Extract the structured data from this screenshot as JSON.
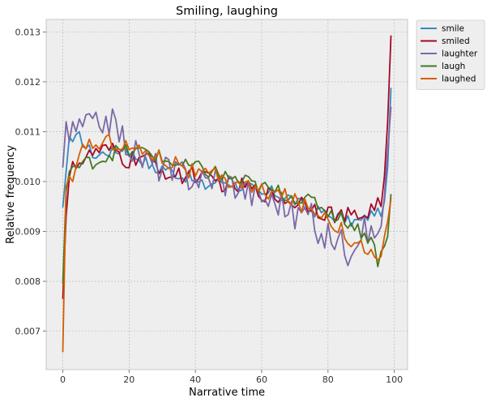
{
  "chart_data": {
    "type": "line",
    "title": "Smiling, laughing",
    "xlabel": "Narrative time",
    "ylabel": "Relative frequency",
    "xlim": [
      -5,
      104
    ],
    "ylim": [
      0.00623,
      0.01325
    ],
    "xticks": [
      0,
      20,
      40,
      60,
      80,
      100
    ],
    "yticks": [
      0.007,
      0.008,
      0.009,
      0.01,
      0.011,
      0.012,
      0.013
    ],
    "ytick_labels": [
      "0.007",
      "0.008",
      "0.009",
      "0.010",
      "0.011",
      "0.012",
      "0.013"
    ],
    "grid": true,
    "legend_position": "outside-top-right",
    "series": [
      {
        "name": "smile",
        "color": "#348ABD",
        "anchors": [
          [
            0,
            0.00948
          ],
          [
            1,
            0.0102
          ],
          [
            2,
            0.0109
          ],
          [
            3,
            0.0108
          ],
          [
            5,
            0.0109
          ],
          [
            7,
            0.0107
          ],
          [
            10,
            0.0105
          ],
          [
            13,
            0.0106
          ],
          [
            16,
            0.0106
          ],
          [
            19,
            0.0107
          ],
          [
            20,
            0.0106
          ],
          [
            22,
            0.0105
          ],
          [
            25,
            0.0104
          ],
          [
            28,
            0.0102
          ],
          [
            30,
            0.0103
          ],
          [
            33,
            0.0102
          ],
          [
            36,
            0.0101
          ],
          [
            38,
            0.0101
          ],
          [
            40,
            0.01
          ],
          [
            43,
            0.0099
          ],
          [
            46,
            0.01
          ],
          [
            48,
            0.01
          ],
          [
            50,
            0.01
          ],
          [
            53,
            0.0099
          ],
          [
            56,
            0.0099
          ],
          [
            58,
            0.0098
          ],
          [
            60,
            0.0097
          ],
          [
            63,
            0.0098
          ],
          [
            66,
            0.0097
          ],
          [
            68,
            0.0097
          ],
          [
            70,
            0.0096
          ],
          [
            73,
            0.0095
          ],
          [
            76,
            0.0094
          ],
          [
            78,
            0.0094
          ],
          [
            80,
            0.0093
          ],
          [
            83,
            0.0093
          ],
          [
            86,
            0.0092
          ],
          [
            88,
            0.0092
          ],
          [
            90,
            0.0092
          ],
          [
            92,
            0.0093
          ],
          [
            94,
            0.0094
          ],
          [
            96,
            0.0093
          ],
          [
            97,
            0.0096
          ],
          [
            98,
            0.0103
          ],
          [
            99,
            0.01188
          ]
        ],
        "amp": 0.00012
      },
      {
        "name": "smiled",
        "color": "#A60628",
        "anchors": [
          [
            0,
            0.00765
          ],
          [
            1,
            0.0093
          ],
          [
            2,
            0.0101
          ],
          [
            3,
            0.0104
          ],
          [
            5,
            0.0104
          ],
          [
            8,
            0.0105
          ],
          [
            10,
            0.0106
          ],
          [
            13,
            0.0106
          ],
          [
            16,
            0.0106
          ],
          [
            19,
            0.0104
          ],
          [
            20,
            0.0104
          ],
          [
            23,
            0.0105
          ],
          [
            26,
            0.0104
          ],
          [
            29,
            0.0103
          ],
          [
            31,
            0.0102
          ],
          [
            33,
            0.0101
          ],
          [
            36,
            0.0101
          ],
          [
            39,
            0.0102
          ],
          [
            41,
            0.0101
          ],
          [
            44,
            0.01
          ],
          [
            47,
            0.01
          ],
          [
            50,
            0.0099
          ],
          [
            53,
            0.0099
          ],
          [
            56,
            0.0099
          ],
          [
            58,
            0.0098
          ],
          [
            60,
            0.0098
          ],
          [
            63,
            0.0097
          ],
          [
            66,
            0.0097
          ],
          [
            68,
            0.0096
          ],
          [
            70,
            0.0096
          ],
          [
            73,
            0.0096
          ],
          [
            76,
            0.0095
          ],
          [
            78,
            0.0094
          ],
          [
            80,
            0.0094
          ],
          [
            83,
            0.0093
          ],
          [
            86,
            0.0093
          ],
          [
            88,
            0.0093
          ],
          [
            90,
            0.0093
          ],
          [
            92,
            0.0094
          ],
          [
            94,
            0.0095
          ],
          [
            95,
            0.0096
          ],
          [
            96,
            0.0095
          ],
          [
            97,
            0.0101
          ],
          [
            98,
            0.0112
          ],
          [
            99,
            0.01293
          ]
        ],
        "amp": 0.00018
      },
      {
        "name": "laughter",
        "color": "#7A68A6",
        "anchors": [
          [
            0,
            0.01028
          ],
          [
            1,
            0.0112
          ],
          [
            2,
            0.0108
          ],
          [
            3,
            0.0112
          ],
          [
            5,
            0.011
          ],
          [
            7,
            0.0112
          ],
          [
            10,
            0.0111
          ],
          [
            13,
            0.0113
          ],
          [
            16,
            0.0111
          ],
          [
            19,
            0.0108
          ],
          [
            20,
            0.0107
          ],
          [
            23,
            0.0105
          ],
          [
            26,
            0.0104
          ],
          [
            29,
            0.0103
          ],
          [
            31,
            0.0103
          ],
          [
            33,
            0.0101
          ],
          [
            36,
            0.0102
          ],
          [
            38,
            0.0101
          ],
          [
            40,
            0.0101
          ],
          [
            43,
            0.01
          ],
          [
            46,
            0.0101
          ],
          [
            48,
            0.01
          ],
          [
            50,
            0.01
          ],
          [
            53,
            0.0099
          ],
          [
            56,
            0.0098
          ],
          [
            58,
            0.0097
          ],
          [
            60,
            0.0097
          ],
          [
            63,
            0.0096
          ],
          [
            66,
            0.0096
          ],
          [
            68,
            0.0094
          ],
          [
            70,
            0.0093
          ],
          [
            73,
            0.0094
          ],
          [
            76,
            0.0092
          ],
          [
            78,
            0.0088
          ],
          [
            80,
            0.0089
          ],
          [
            83,
            0.0089
          ],
          [
            86,
            0.0086
          ],
          [
            88,
            0.0089
          ],
          [
            90,
            0.009
          ],
          [
            92,
            0.009
          ],
          [
            94,
            0.0089
          ],
          [
            96,
            0.0091
          ],
          [
            97,
            0.0097
          ],
          [
            98,
            0.0106
          ],
          [
            99,
            0.0115
          ]
        ],
        "amp": 0.0003
      },
      {
        "name": "laugh",
        "color": "#467821",
        "anchors": [
          [
            0,
            0.00795
          ],
          [
            1,
            0.0098
          ],
          [
            2,
            0.0102
          ],
          [
            3,
            0.0103
          ],
          [
            5,
            0.0103
          ],
          [
            8,
            0.0104
          ],
          [
            10,
            0.0104
          ],
          [
            13,
            0.0105
          ],
          [
            16,
            0.0106
          ],
          [
            19,
            0.0106
          ],
          [
            20,
            0.0106
          ],
          [
            23,
            0.0106
          ],
          [
            26,
            0.0106
          ],
          [
            29,
            0.0105
          ],
          [
            31,
            0.0104
          ],
          [
            33,
            0.0104
          ],
          [
            36,
            0.0103
          ],
          [
            38,
            0.0103
          ],
          [
            40,
            0.0103
          ],
          [
            43,
            0.0102
          ],
          [
            46,
            0.0102
          ],
          [
            48,
            0.0101
          ],
          [
            50,
            0.0101
          ],
          [
            53,
            0.01
          ],
          [
            56,
            0.01
          ],
          [
            58,
            0.0099
          ],
          [
            60,
            0.0099
          ],
          [
            63,
            0.0098
          ],
          [
            66,
            0.0098
          ],
          [
            68,
            0.0097
          ],
          [
            70,
            0.0097
          ],
          [
            73,
            0.0096
          ],
          [
            76,
            0.0096
          ],
          [
            78,
            0.0095
          ],
          [
            80,
            0.0094
          ],
          [
            83,
            0.0093
          ],
          [
            86,
            0.0092
          ],
          [
            88,
            0.0091
          ],
          [
            90,
            0.009
          ],
          [
            92,
            0.0089
          ],
          [
            94,
            0.0087
          ],
          [
            95,
            0.0084
          ],
          [
            96,
            0.0086
          ],
          [
            97,
            0.0087
          ],
          [
            98,
            0.0089
          ],
          [
            99,
            0.00975
          ]
        ],
        "amp": 0.00015
      },
      {
        "name": "laughed",
        "color": "#D55E00",
        "anchors": [
          [
            0,
            0.00658
          ],
          [
            1,
            0.0099
          ],
          [
            2,
            0.0101
          ],
          [
            3,
            0.01
          ],
          [
            5,
            0.0104
          ],
          [
            7,
            0.0108
          ],
          [
            10,
            0.0107
          ],
          [
            13,
            0.0108
          ],
          [
            16,
            0.0108
          ],
          [
            19,
            0.0107
          ],
          [
            20,
            0.0107
          ],
          [
            23,
            0.0106
          ],
          [
            26,
            0.0106
          ],
          [
            29,
            0.0105
          ],
          [
            31,
            0.0104
          ],
          [
            33,
            0.0104
          ],
          [
            36,
            0.0104
          ],
          [
            38,
            0.0102
          ],
          [
            40,
            0.0102
          ],
          [
            43,
            0.0101
          ],
          [
            46,
            0.0101
          ],
          [
            48,
            0.01
          ],
          [
            50,
            0.01
          ],
          [
            53,
            0.01
          ],
          [
            56,
            0.0099
          ],
          [
            58,
            0.0098
          ],
          [
            60,
            0.0098
          ],
          [
            63,
            0.0098
          ],
          [
            66,
            0.0097
          ],
          [
            68,
            0.0097
          ],
          [
            70,
            0.0096
          ],
          [
            73,
            0.0095
          ],
          [
            76,
            0.0094
          ],
          [
            78,
            0.0094
          ],
          [
            80,
            0.0093
          ],
          [
            83,
            0.0091
          ],
          [
            86,
            0.0089
          ],
          [
            88,
            0.0088
          ],
          [
            90,
            0.0087
          ],
          [
            92,
            0.0087
          ],
          [
            94,
            0.0084
          ],
          [
            95,
            0.0083
          ],
          [
            96,
            0.0085
          ],
          [
            97,
            0.0089
          ],
          [
            98,
            0.0092
          ],
          [
            99,
            0.00965
          ]
        ],
        "amp": 0.00017
      }
    ]
  }
}
